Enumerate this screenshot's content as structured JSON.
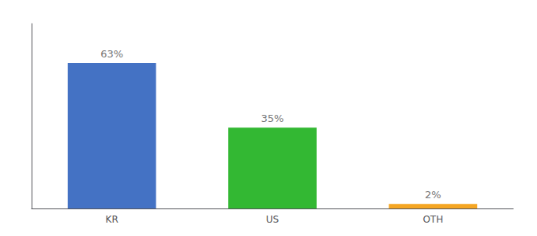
{
  "chart_data": {
    "type": "bar",
    "categories": [
      "KR",
      "US",
      "OTH"
    ],
    "values": [
      63,
      35,
      2
    ],
    "colors": [
      "#4472c4",
      "#33b833",
      "#f5a623"
    ],
    "data_labels": true,
    "value_labels": [
      "63%",
      "35%",
      "2%"
    ],
    "ylim": [
      0,
      80
    ],
    "tick_labels": "x",
    "grid": false
  }
}
